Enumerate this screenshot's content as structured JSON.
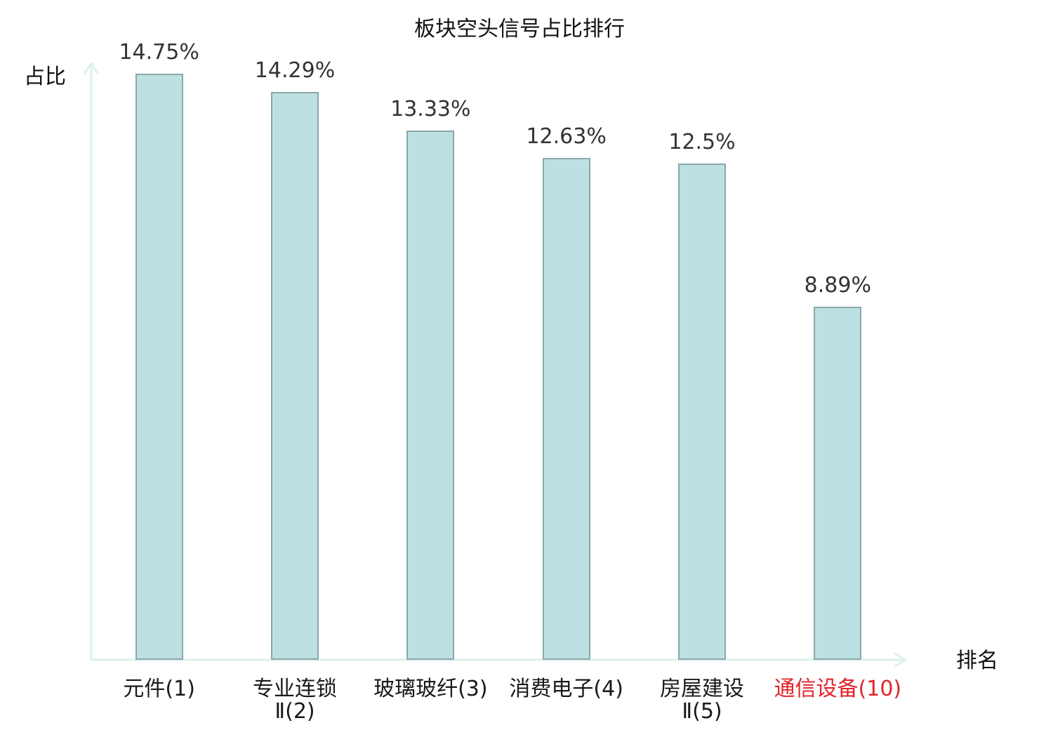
{
  "chart_data": {
    "type": "bar",
    "title": "板块空头信号占比排行",
    "xlabel": "排名",
    "ylabel": "占比",
    "categories": [
      "元件(1)",
      "专业连锁\nⅡ(2)",
      "玻璃玻纤(3)",
      "消费电子(4)",
      "房屋建设\nⅡ(5)",
      "通信设备(10)"
    ],
    "values": [
      14.75,
      14.29,
      13.33,
      12.63,
      12.5,
      8.89
    ],
    "data_labels": [
      "14.75%",
      "14.29%",
      "13.33%",
      "12.63%",
      "12.5%",
      "8.89%"
    ],
    "ylim": [
      0,
      15
    ],
    "grid": false,
    "highlighted_categories": [
      5
    ]
  },
  "colors": {
    "bar_fill": "#bde1e3",
    "bar_stroke": "#8ba7a9",
    "axis": "#dcf1ec",
    "value_label": "#333333",
    "category_label": "#1a1a1a",
    "highlight_label": "#e3232a",
    "title": "#111111"
  }
}
